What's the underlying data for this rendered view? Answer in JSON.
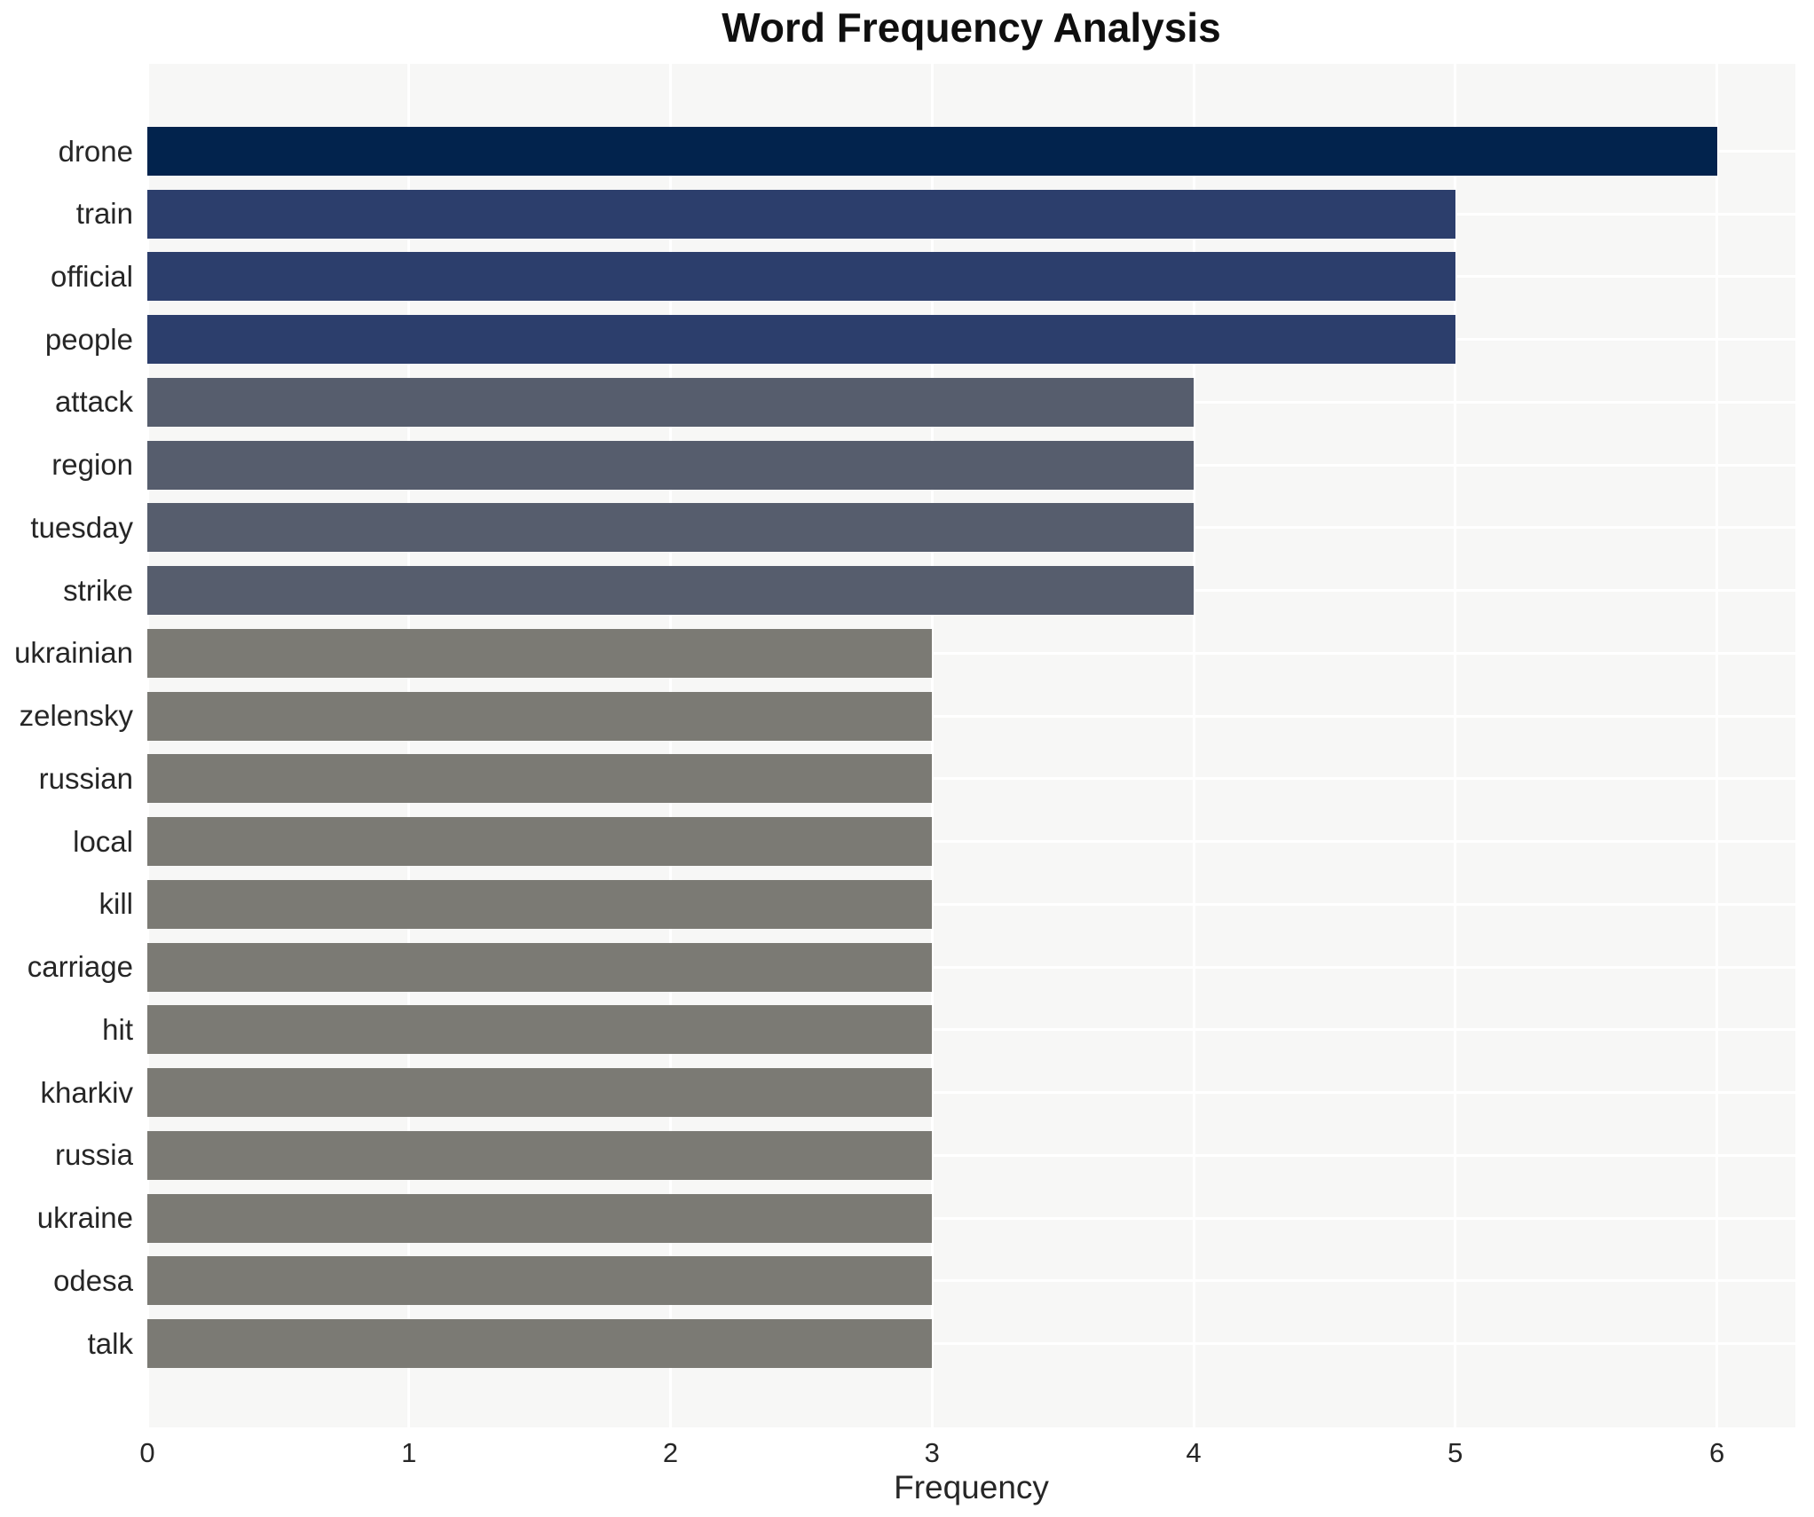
{
  "chart_data": {
    "type": "bar",
    "orientation": "horizontal",
    "title": "Word Frequency Analysis",
    "xlabel": "Frequency",
    "ylabel": "",
    "categories": [
      "drone",
      "train",
      "official",
      "people",
      "attack",
      "region",
      "tuesday",
      "strike",
      "ukrainian",
      "zelensky",
      "russian",
      "local",
      "kill",
      "carriage",
      "hit",
      "kharkiv",
      "russia",
      "ukraine",
      "odesa",
      "talk"
    ],
    "values": [
      6,
      5,
      5,
      5,
      4,
      4,
      4,
      4,
      3,
      3,
      3,
      3,
      3,
      3,
      3,
      3,
      3,
      3,
      3,
      3
    ],
    "xticks": [
      0,
      1,
      2,
      3,
      4,
      5,
      6
    ],
    "xlim": [
      0,
      6.3
    ],
    "grid": true,
    "legend": false,
    "value_colors": {
      "6": "#02234d",
      "5": "#2c3e6c",
      "4": "#565d6d",
      "3": "#7b7a74"
    }
  },
  "style": {
    "page_bg": "#ffffff",
    "plot_bg": "#f7f7f6",
    "grid_color": "#ffffff",
    "title_color": "#0f0f0f",
    "text_color": "#262626"
  }
}
